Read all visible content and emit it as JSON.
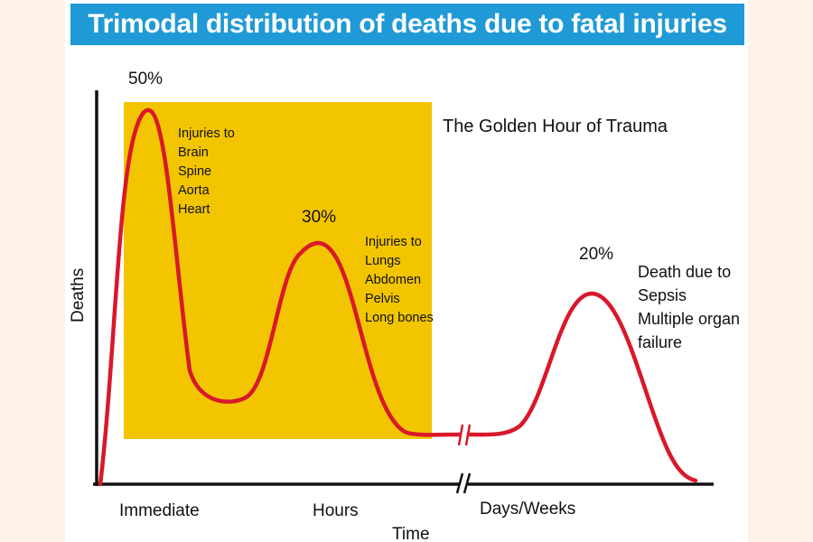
{
  "title": "Trimodal distribution of deaths due to fatal injuries",
  "colors": {
    "title_background": "#1f9ad6",
    "golden_hour_box": "#f2c500",
    "curve": "#d9182b",
    "axis": "#111111",
    "page_background": "#fdf3ea"
  },
  "chart_data": {
    "type": "line",
    "title": "Trimodal distribution of deaths due to fatal injuries",
    "xlabel": "Time",
    "ylabel": "Deaths",
    "x_tick_labels": [
      "Immediate",
      "Hours",
      "Days/Weeks"
    ],
    "axis_break": "between Hours and Days/Weeks",
    "highlight_region": {
      "label": "The Golden Hour of Trauma",
      "covers": [
        "Immediate",
        "Hours"
      ]
    },
    "peaks": [
      {
        "phase": "Immediate",
        "percent_label": "50%",
        "value": 50,
        "annotation": [
          "Injuries to",
          "Brain",
          "Spine",
          "Aorta",
          "Heart"
        ]
      },
      {
        "phase": "Hours",
        "percent_label": "30%",
        "value": 30,
        "annotation": [
          "Injuries to",
          "Lungs",
          "Abdomen",
          "Pelvis",
          "Long bones"
        ]
      },
      {
        "phase": "Days/Weeks",
        "percent_label": "20%",
        "value": 20,
        "annotation": [
          "Death due to",
          "Sepsis",
          "Multiple organ",
          "failure"
        ]
      }
    ]
  }
}
